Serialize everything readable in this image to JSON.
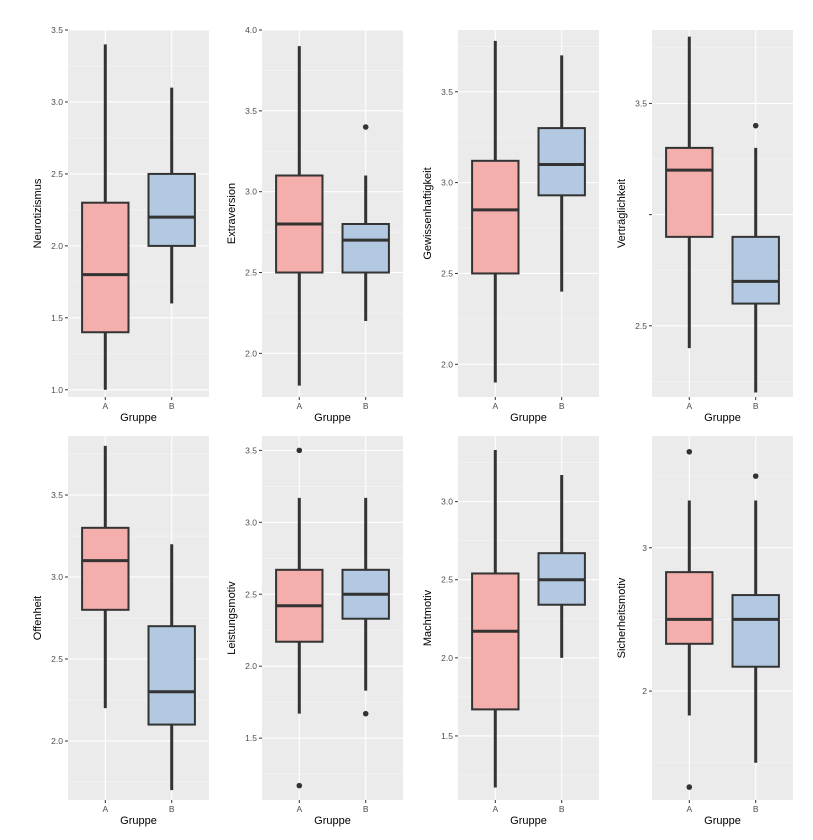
{
  "chart_data": [
    {
      "type": "boxplot",
      "xlabel": "Gruppe",
      "ylabel": "Neurotizismus",
      "categories": [
        "A",
        "B"
      ],
      "ylim": [
        0.95,
        3.5
      ],
      "yticks": [
        1.0,
        1.5,
        2.0,
        2.5,
        3.0,
        3.5
      ],
      "ytick_labels": [
        "1.0",
        "1.5",
        "2.0",
        "2.5",
        "3.0",
        "3.5"
      ],
      "groups": [
        {
          "name": "A",
          "min": 1.0,
          "q1": 1.4,
          "median": 1.8,
          "q3": 2.3,
          "max": 3.4,
          "outliers": []
        },
        {
          "name": "B",
          "min": 1.6,
          "q1": 2.0,
          "median": 2.2,
          "q3": 2.5,
          "max": 3.1,
          "outliers": []
        }
      ]
    },
    {
      "type": "boxplot",
      "xlabel": "Gruppe",
      "ylabel": "Extraversion",
      "categories": [
        "A",
        "B"
      ],
      "ylim": [
        1.73,
        4.0
      ],
      "yticks": [
        2.0,
        2.5,
        3.0,
        3.5,
        4.0
      ],
      "ytick_labels": [
        "2.0",
        "2.5",
        "3.0",
        "3.5",
        "4.0"
      ],
      "groups": [
        {
          "name": "A",
          "min": 1.8,
          "q1": 2.5,
          "median": 2.8,
          "q3": 3.1,
          "max": 3.9,
          "outliers": []
        },
        {
          "name": "B",
          "min": 2.2,
          "q1": 2.5,
          "median": 2.7,
          "q3": 2.8,
          "max": 3.1,
          "outliers": [
            3.4
          ]
        }
      ]
    },
    {
      "type": "boxplot",
      "xlabel": "Gruppe",
      "ylabel": "Gewissenhaftigkeit",
      "categories": [
        "A",
        "B"
      ],
      "ylim": [
        1.82,
        3.84
      ],
      "yticks": [
        2.0,
        2.5,
        3.0,
        3.5
      ],
      "ytick_labels": [
        "2.0",
        "2.5",
        "3.0",
        "3.5"
      ],
      "groups": [
        {
          "name": "A",
          "min": 1.9,
          "q1": 2.5,
          "median": 2.85,
          "q3": 3.12,
          "max": 3.78,
          "outliers": []
        },
        {
          "name": "B",
          "min": 2.4,
          "q1": 2.93,
          "median": 3.1,
          "q3": 3.3,
          "max": 3.7,
          "outliers": []
        }
      ]
    },
    {
      "type": "boxplot",
      "xlabel": "Gruppe",
      "ylabel": "Verträglichkeit",
      "categories": [
        "A",
        "B"
      ],
      "ylim": [
        2.18,
        3.83
      ],
      "yticks": [
        2.5,
        3.0,
        3.5
      ],
      "ytick_labels": [
        "2.5",
        "",
        "3.5"
      ],
      "groups": [
        {
          "name": "A",
          "min": 2.4,
          "q1": 2.9,
          "median": 3.2,
          "q3": 3.3,
          "max": 3.8,
          "outliers": []
        },
        {
          "name": "B",
          "min": 2.2,
          "q1": 2.6,
          "median": 2.7,
          "q3": 2.9,
          "max": 3.3,
          "outliers": [
            3.4
          ]
        }
      ]
    },
    {
      "type": "boxplot",
      "xlabel": "Gruppe",
      "ylabel": "Offenheit",
      "categories": [
        "A",
        "B"
      ],
      "ylim": [
        1.64,
        3.86
      ],
      "yticks": [
        2.0,
        2.5,
        3.0,
        3.5
      ],
      "ytick_labels": [
        "2.0",
        "2.5",
        "3.0",
        "3.5"
      ],
      "groups": [
        {
          "name": "A",
          "min": 2.2,
          "q1": 2.8,
          "median": 3.1,
          "q3": 3.3,
          "max": 3.8,
          "outliers": []
        },
        {
          "name": "B",
          "min": 1.7,
          "q1": 2.1,
          "median": 2.3,
          "q3": 2.7,
          "max": 3.2,
          "outliers": []
        }
      ]
    },
    {
      "type": "boxplot",
      "xlabel": "Gruppe",
      "ylabel": "Leistungsmotiv",
      "categories": [
        "A",
        "B"
      ],
      "ylim": [
        1.07,
        3.6
      ],
      "yticks": [
        1.5,
        2.0,
        2.5,
        3.0,
        3.5
      ],
      "ytick_labels": [
        "1.5",
        "2.0",
        "2.5",
        "3.0",
        "3.5"
      ],
      "groups": [
        {
          "name": "A",
          "min": 1.67,
          "q1": 2.17,
          "median": 2.42,
          "q3": 2.67,
          "max": 3.17,
          "outliers": [
            3.5,
            1.17
          ]
        },
        {
          "name": "B",
          "min": 1.83,
          "q1": 2.33,
          "median": 2.5,
          "q3": 2.67,
          "max": 3.17,
          "outliers": [
            1.67
          ]
        }
      ]
    },
    {
      "type": "boxplot",
      "xlabel": "Gruppe",
      "ylabel": "Machtmotiv",
      "categories": [
        "A",
        "B"
      ],
      "ylim": [
        1.09,
        3.42
      ],
      "yticks": [
        1.5,
        2.0,
        2.5,
        3.0
      ],
      "ytick_labels": [
        "1.5",
        "2.0",
        "2.5",
        "3.0"
      ],
      "groups": [
        {
          "name": "A",
          "min": 1.17,
          "q1": 1.67,
          "median": 2.17,
          "q3": 2.54,
          "max": 3.33,
          "outliers": []
        },
        {
          "name": "B",
          "min": 2.0,
          "q1": 2.34,
          "median": 2.5,
          "q3": 2.67,
          "max": 3.17,
          "outliers": []
        }
      ]
    },
    {
      "type": "boxplot",
      "xlabel": "Gruppe",
      "ylabel": "Sicherheitsmotiv",
      "categories": [
        "A",
        "B"
      ],
      "ylim": [
        1.24,
        3.78
      ],
      "yticks": [
        2,
        3
      ],
      "ytick_labels": [
        "2",
        "3"
      ],
      "groups": [
        {
          "name": "A",
          "min": 1.83,
          "q1": 2.33,
          "median": 2.5,
          "q3": 2.83,
          "max": 3.33,
          "outliers": [
            3.67,
            1.33
          ]
        },
        {
          "name": "B",
          "min": 1.5,
          "q1": 2.17,
          "median": 2.5,
          "q3": 2.67,
          "max": 3.33,
          "outliers": [
            3.5
          ]
        }
      ]
    }
  ],
  "colors": {
    "group_a": "#f4aeac",
    "group_b": "#b3c9e2",
    "line": "#333333",
    "panel": "#ebebeb",
    "grid": "#ffffff"
  }
}
